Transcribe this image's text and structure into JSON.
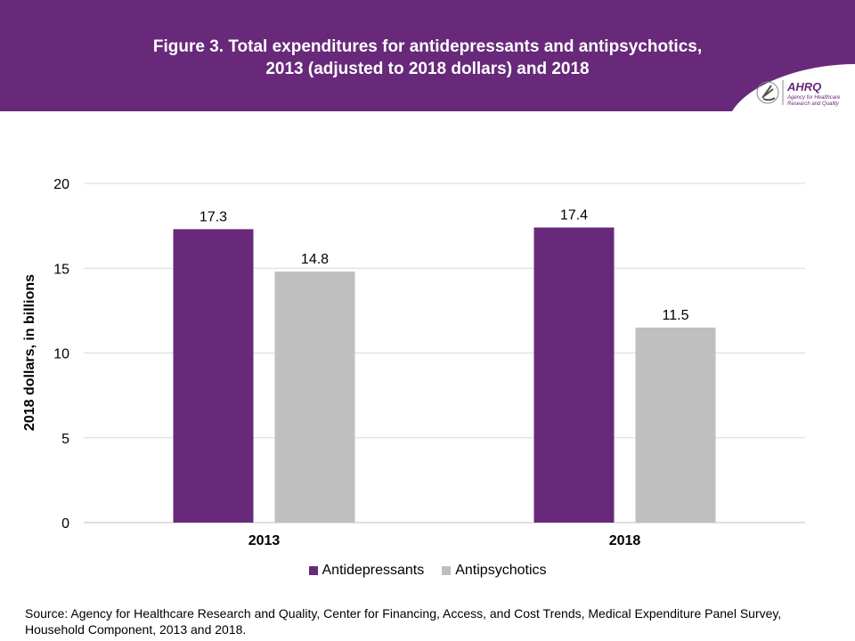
{
  "header": {
    "title_line1": "Figure 3. Total expenditures for antidepressants and antipsychotics,",
    "title_line2": "2013 (adjusted to 2018 dollars) and 2018",
    "logo_text": "AHRQ Agency for Healthcare Research and Quality"
  },
  "colors": {
    "brand": "#68297a",
    "antidepressants": "#68297a",
    "antipsychotics": "#bfbfbf"
  },
  "chart_data": {
    "type": "bar",
    "title": "Figure 3. Total expenditures for antidepressants and antipsychotics, 2013 (adjusted to 2018 dollars) and 2018",
    "categories": [
      "2013",
      "2018"
    ],
    "series": [
      {
        "name": "Antidepressants",
        "values": [
          17.3,
          17.4
        ]
      },
      {
        "name": "Antipsychotics",
        "values": [
          14.8,
          11.5
        ]
      }
    ],
    "value_labels": [
      [
        "17.3",
        "17.4"
      ],
      [
        "14.8",
        "11.5"
      ]
    ],
    "ylabel": "2018 dollars, in billions",
    "xlabel": "",
    "ylim": [
      0,
      20
    ],
    "yticks": [
      "0",
      "5",
      "10",
      "15",
      "20"
    ],
    "grid": true,
    "legend": "bottom"
  },
  "source": "Source: Agency for Healthcare Research and Quality, Center for Financing, Access, and Cost Trends, Medical Expenditure Panel Survey, Household Component, 2013 and 2018."
}
